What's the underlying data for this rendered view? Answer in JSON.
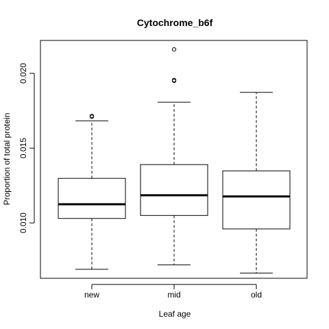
{
  "chart_data": {
    "type": "boxplot",
    "title": "Cytochrome_b6f",
    "xlabel": "Leaf age",
    "ylabel": "Proportion of total protein",
    "ylim": [
      0.0063,
      0.0222
    ],
    "y_ticks": [
      "0.010",
      "0.015",
      "0.020"
    ],
    "categories": [
      "new",
      "mid",
      "old"
    ],
    "boxes": [
      {
        "name": "new",
        "whisker_low": 0.0069,
        "q1": 0.0103,
        "median": 0.01125,
        "q3": 0.01298,
        "whisker_high": 0.01683,
        "outliers": [
          0.0171,
          0.01715
        ]
      },
      {
        "name": "mid",
        "whisker_low": 0.0072,
        "q1": 0.0105,
        "median": 0.01185,
        "q3": 0.0139,
        "whisker_high": 0.01807,
        "outliers": [
          0.0195,
          0.01955,
          0.0216
        ]
      },
      {
        "name": "old",
        "whisker_low": 0.00665,
        "q1": 0.0096,
        "median": 0.01177,
        "q3": 0.01348,
        "whisker_high": 0.01873,
        "outliers": []
      }
    ],
    "grid": false,
    "legend": "none"
  }
}
